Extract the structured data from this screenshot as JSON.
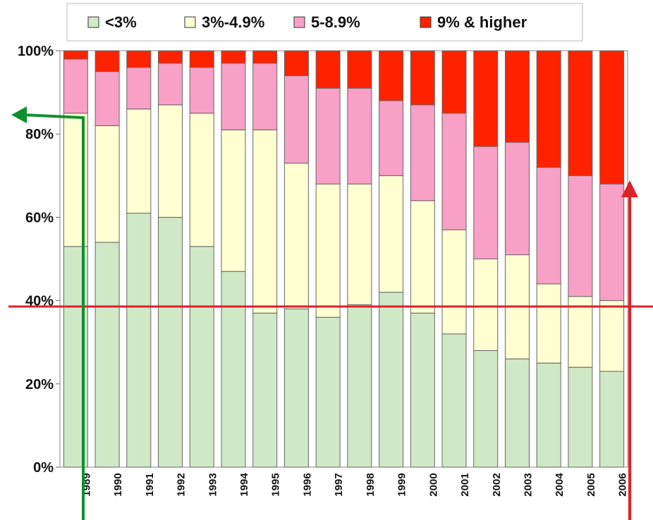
{
  "chart_data": {
    "type": "stacked_bar",
    "categories": [
      "1989",
      "1990",
      "1991",
      "1992",
      "1993",
      "1994",
      "1995",
      "1996",
      "1997",
      "1998",
      "1999",
      "2000",
      "2001",
      "2002",
      "2003",
      "2004",
      "2005",
      "2006"
    ],
    "series": [
      {
        "name": "<3%",
        "color": "#cfe8c6",
        "values": [
          53,
          54,
          61,
          60,
          53,
          47,
          37,
          38,
          36,
          39,
          42,
          37,
          32,
          28,
          26,
          25,
          24,
          23
        ]
      },
      {
        "name": "3%-4.9%",
        "color": "#ffffd2",
        "values": [
          32,
          28,
          25,
          27,
          32,
          34,
          44,
          35,
          32,
          29,
          28,
          27,
          25,
          22,
          25,
          19,
          17,
          17
        ]
      },
      {
        "name": "5-8.9%",
        "color": "#f8a0c6",
        "values": [
          13,
          13,
          10,
          10,
          11,
          16,
          16,
          21,
          23,
          23,
          18,
          23,
          28,
          27,
          27,
          28,
          29,
          28
        ]
      },
      {
        "name": "9% & higher",
        "color": "#ff2200",
        "values": [
          2,
          5,
          4,
          3,
          4,
          3,
          3,
          6,
          9,
          9,
          12,
          13,
          15,
          23,
          22,
          28,
          30,
          32
        ]
      }
    ],
    "ylim": [
      0,
      100
    ],
    "yticks": [
      {
        "value": 0,
        "label": "0%"
      },
      {
        "value": 20,
        "label": "20%"
      },
      {
        "value": 40,
        "label": "40%"
      },
      {
        "value": 60,
        "label": "60%"
      },
      {
        "value": 80,
        "label": "80%"
      },
      {
        "value": 100,
        "label": "100%"
      }
    ],
    "legend": "top"
  }
}
